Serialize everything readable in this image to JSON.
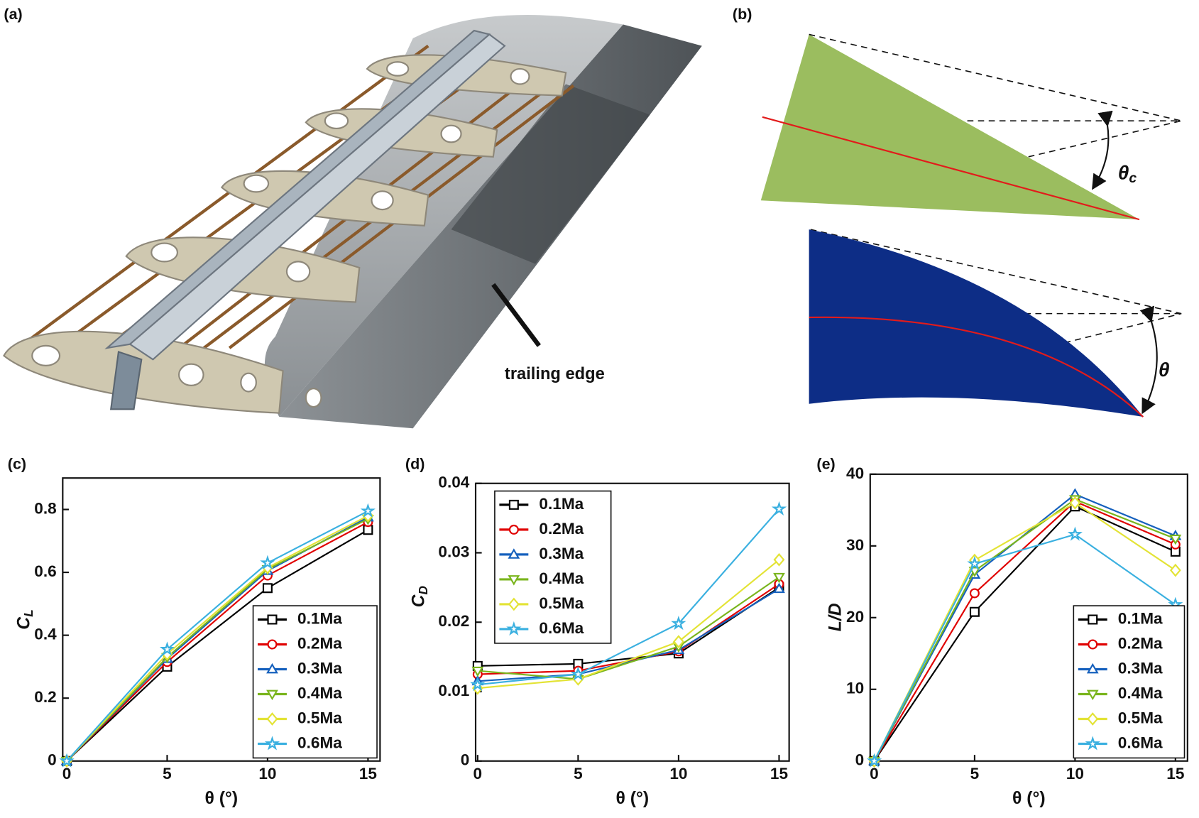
{
  "panel_labels": [
    "(a)",
    "(b)",
    "(c)",
    "(d)",
    "(e)"
  ],
  "annotation": "trailing edge",
  "angle_top": {
    "symbol": "θ",
    "subscript": "c"
  },
  "angle_bottom": "θ",
  "chart_data": [
    {
      "type": "line",
      "x_label": "θ (°)",
      "y_label": "C",
      "y_label_sub": "L",
      "x": [
        0,
        5,
        10,
        15
      ],
      "xlim": [
        -0.2,
        15.6
      ],
      "xticks": [
        0,
        5,
        10,
        15
      ],
      "ylim": [
        0,
        0.9
      ],
      "yticks": [
        0,
        0.2,
        0.4,
        0.6,
        0.8
      ],
      "legend": "lower right",
      "series": [
        {
          "name": "0.1Ma",
          "color": "#000000",
          "marker": "square",
          "values": [
            0,
            0.3,
            0.55,
            0.735
          ]
        },
        {
          "name": "0.2Ma",
          "color": "#e00000",
          "marker": "circle",
          "values": [
            0,
            0.315,
            0.59,
            0.76
          ]
        },
        {
          "name": "0.3Ma",
          "color": "#1560bd",
          "marker": "triangle-up",
          "values": [
            0,
            0.325,
            0.605,
            0.775
          ]
        },
        {
          "name": "0.4Ma",
          "color": "#7ab51d",
          "marker": "triangle-down",
          "values": [
            0,
            0.33,
            0.61,
            0.77
          ]
        },
        {
          "name": "0.5Ma",
          "color": "#e3e335",
          "marker": "diamond",
          "values": [
            0,
            0.34,
            0.615,
            0.78
          ]
        },
        {
          "name": "0.6Ma",
          "color": "#3ab0e0",
          "marker": "star",
          "values": [
            0,
            0.355,
            0.63,
            0.795
          ]
        }
      ]
    },
    {
      "type": "line",
      "x_label": "θ (°)",
      "y_label": "C",
      "y_label_sub": "D",
      "x": [
        0,
        5,
        10,
        15
      ],
      "xlim": [
        -0.1,
        15.5
      ],
      "xticks": [
        0,
        5,
        10,
        15
      ],
      "ylim": [
        0,
        0.04
      ],
      "yticks": [
        0,
        0.01,
        0.02,
        0.03,
        0.04
      ],
      "legend": "upper left",
      "series": [
        {
          "name": "0.1Ma",
          "color": "#000000",
          "marker": "square",
          "values": [
            0.0137,
            0.014,
            0.0155,
            0.025
          ]
        },
        {
          "name": "0.2Ma",
          "color": "#e00000",
          "marker": "circle",
          "values": [
            0.0125,
            0.013,
            0.0158,
            0.0255
          ]
        },
        {
          "name": "0.3Ma",
          "color": "#1560bd",
          "marker": "triangle-up",
          "values": [
            0.0115,
            0.0125,
            0.016,
            0.0248
          ]
        },
        {
          "name": "0.4Ma",
          "color": "#7ab51d",
          "marker": "triangle-down",
          "values": [
            0.013,
            0.0118,
            0.0165,
            0.0265
          ]
        },
        {
          "name": "0.5Ma",
          "color": "#e3e335",
          "marker": "diamond",
          "values": [
            0.0105,
            0.0118,
            0.0172,
            0.029
          ]
        },
        {
          "name": "0.6Ma",
          "color": "#3ab0e0",
          "marker": "star",
          "values": [
            0.011,
            0.0125,
            0.0198,
            0.0363
          ]
        }
      ]
    },
    {
      "type": "line",
      "x_label": "θ (°)",
      "y_label": "L/D",
      "y_label_sub": null,
      "x": [
        0,
        5,
        10,
        15
      ],
      "xlim": [
        -0.2,
        15.6
      ],
      "xticks": [
        0,
        5,
        10,
        15
      ],
      "ylim": [
        0,
        40
      ],
      "yticks": [
        0,
        10,
        20,
        30,
        40
      ],
      "legend": "lower right",
      "series": [
        {
          "name": "0.1Ma",
          "color": "#000000",
          "marker": "square",
          "values": [
            0,
            20.8,
            35.5,
            29.2
          ]
        },
        {
          "name": "0.2Ma",
          "color": "#e00000",
          "marker": "circle",
          "values": [
            0,
            23.4,
            36.2,
            30.2
          ]
        },
        {
          "name": "0.3Ma",
          "color": "#1560bd",
          "marker": "triangle-up",
          "values": [
            0,
            26,
            37.2,
            31.4
          ]
        },
        {
          "name": "0.4Ma",
          "color": "#7ab51d",
          "marker": "triangle-down",
          "values": [
            0,
            26.5,
            36.5,
            31
          ]
        },
        {
          "name": "0.5Ma",
          "color": "#e3e335",
          "marker": "diamond",
          "values": [
            0,
            28,
            36,
            26.6
          ]
        },
        {
          "name": "0.6Ma",
          "color": "#3ab0e0",
          "marker": "star",
          "values": [
            0,
            27.5,
            31.6,
            21.8
          ]
        }
      ]
    }
  ]
}
